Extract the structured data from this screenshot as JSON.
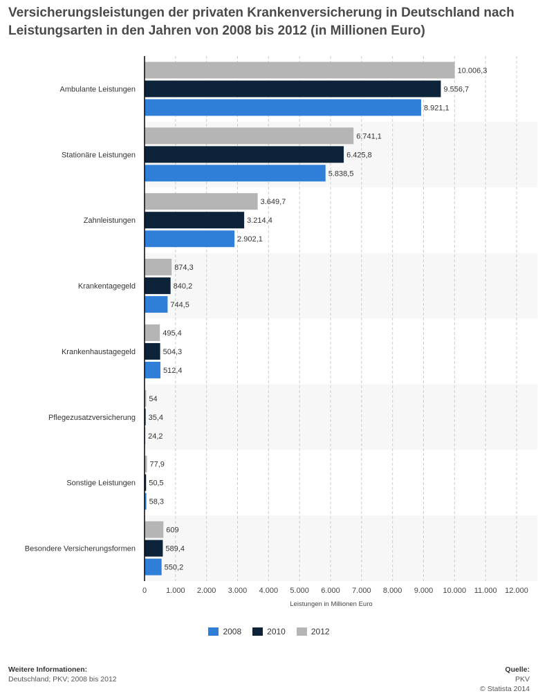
{
  "title": "Versicherungsleistungen der privaten Krankenversicherung in Deutschland nach Leistungsarten in den Jahren von 2008 bis 2012 (in Millionen Euro)",
  "footer": {
    "info_heading": "Weitere Informationen:",
    "info_text": "Deutschland; PKV; 2008 bis 2012",
    "source_heading": "Quelle:",
    "source_text": "PKV",
    "copyright": "© Statista 2014"
  },
  "colors": {
    "2008": "#2f7ed8",
    "2010": "#0d233a",
    "2012": "#b5b5b5",
    "band": "#f7f7f7",
    "grid": "#cccccc",
    "axis": "#000000"
  },
  "chart_data": {
    "type": "bar",
    "orientation": "horizontal",
    "categories": [
      "Ambulante Leistungen",
      "Stationäre Leistungen",
      "Zahnleistungen",
      "Krankentagegeld",
      "Krankenhaustagegeld",
      "Pflegezusatzversicherung",
      "Sonstige Leistungen",
      "Besondere Versicherungsformen"
    ],
    "series": [
      {
        "name": "2012",
        "values": [
          10006.3,
          6741.1,
          3649.7,
          874.3,
          495.4,
          54,
          77.9,
          609
        ],
        "labels": [
          "10.006,3",
          "6.741,1",
          "3.649,7",
          "874,3",
          "495,4",
          "54",
          "77,9",
          "609"
        ]
      },
      {
        "name": "2010",
        "values": [
          9556.7,
          6425.8,
          3214.4,
          840.2,
          504.3,
          35.4,
          50.5,
          589.4
        ],
        "labels": [
          "9.556,7",
          "6.425,8",
          "3.214,4",
          "840,2",
          "504,3",
          "35,4",
          "50,5",
          "589,4"
        ]
      },
      {
        "name": "2008",
        "values": [
          8921.1,
          5838.5,
          2902.1,
          744.5,
          512.4,
          24.2,
          58.3,
          550.2
        ],
        "labels": [
          "8.921,1",
          "5.838,5",
          "2.902,1",
          "744,5",
          "512,4",
          "24,2",
          "58,3",
          "550,2"
        ]
      }
    ],
    "xlabel": "Leistungen in Millionen Euro",
    "xlim": [
      0,
      12000
    ],
    "xticks": [
      0,
      1000,
      2000,
      3000,
      4000,
      5000,
      6000,
      7000,
      8000,
      9000,
      10000,
      11000,
      12000
    ],
    "xtick_labels": [
      "0",
      "1.000",
      "2.000",
      "3.000",
      "4.000",
      "5.000",
      "6.000",
      "7.000",
      "8.000",
      "9.000",
      "10.000",
      "11.000",
      "12.000"
    ],
    "legend": [
      "2008",
      "2010",
      "2012"
    ],
    "legend_position": "bottom",
    "grid": true
  }
}
